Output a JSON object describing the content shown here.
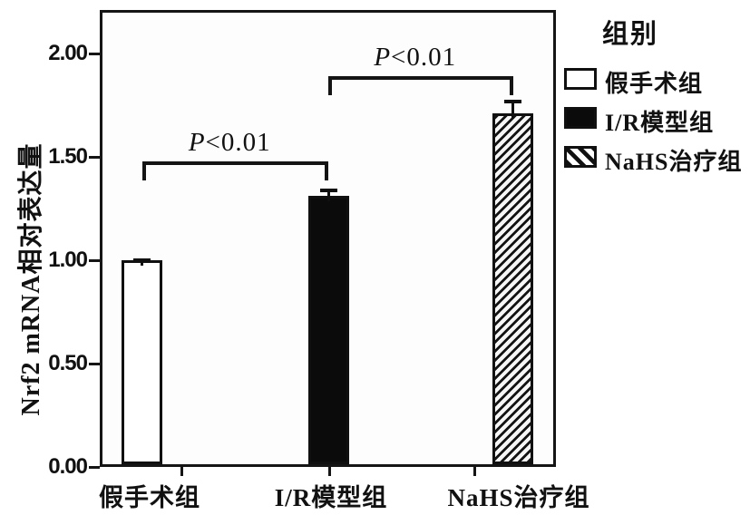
{
  "chart_data": {
    "type": "bar",
    "title": "",
    "xlabel": "",
    "ylabel": "Nrf2 mRNA相对表达量",
    "categories": [
      "假手术组",
      "I/R模型组",
      "NaHS治疗组"
    ],
    "values": [
      1.0,
      1.31,
      1.71
    ],
    "errors": [
      0.01,
      0.035,
      0.065
    ],
    "bar_fills": [
      "white",
      "black",
      "hatch"
    ],
    "ylim": [
      0,
      2.21
    ],
    "yticks": [
      {
        "value": 0.0,
        "label": "0.00"
      },
      {
        "value": 0.5,
        "label": "0.50"
      },
      {
        "value": 1.0,
        "label": "1.00"
      },
      {
        "value": 1.5,
        "label": "1.50"
      },
      {
        "value": 2.0,
        "label": "2.00"
      }
    ],
    "grid": false,
    "legend_position": "right",
    "annotations": [
      {
        "label": "P<0.01",
        "from_category": 0,
        "to_category": 1,
        "y": 1.48
      },
      {
        "label": "P<0.01",
        "from_category": 1,
        "to_category": 2,
        "y": 1.89
      }
    ],
    "legend": {
      "title": "组别",
      "items": [
        {
          "label": "假手术组",
          "fill": "white"
        },
        {
          "label": "I/R模型组",
          "fill": "black"
        },
        {
          "label": "NaHS治疗组",
          "fill": "hatch"
        }
      ]
    },
    "colors": {
      "ink": "#141414",
      "bar_white_fill": "#ffffff",
      "bar_black_fill": "#0b0b0b",
      "background": "#ffffff"
    }
  }
}
